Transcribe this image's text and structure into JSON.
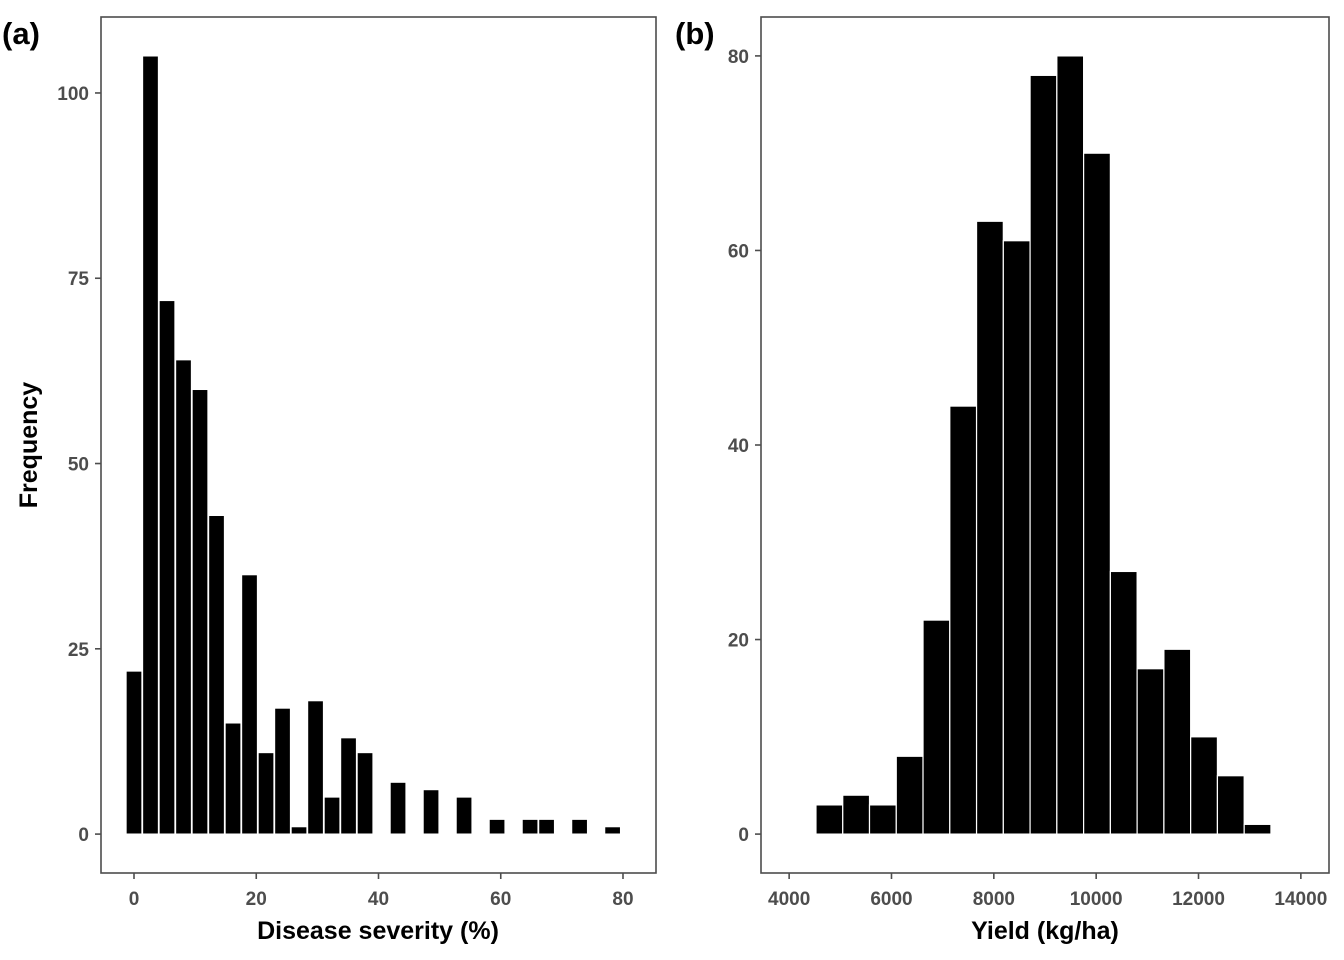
{
  "colors": {
    "bar": "#000000",
    "bar_edge": "#ffffff",
    "frame": "#4d4d4d",
    "tick_text": "#4d4d4d"
  },
  "chart_data": [
    {
      "type": "bar",
      "panel_label": "(a)",
      "xlabel": "Disease severity (%)",
      "ylabel": "Frequency",
      "xlim": [
        -5.4,
        85.4
      ],
      "ylim": [
        -5.25,
        110.25
      ],
      "xticks": [
        0,
        20,
        40,
        60,
        80
      ],
      "yticks": [
        0,
        25,
        50,
        75,
        100
      ],
      "bin_width": 2.6,
      "bin_centers": [
        0,
        2.7,
        5.4,
        8.1,
        10.8,
        13.5,
        16.2,
        18.9,
        21.6,
        24.3,
        27.0,
        29.7,
        32.4,
        35.1,
        37.8,
        43.2,
        48.6,
        54.0,
        59.4,
        64.8,
        67.5,
        72.9,
        78.3
      ],
      "values": [
        22,
        105,
        72,
        64,
        60,
        43,
        15,
        35,
        11,
        17,
        1,
        18,
        5,
        13,
        11,
        7,
        6,
        5,
        2,
        2,
        2,
        2,
        1
      ],
      "grid": false
    },
    {
      "type": "bar",
      "panel_label": "(b)",
      "xlabel": "Yield (kg/ha)",
      "ylabel": "",
      "xlim": [
        3450,
        14550
      ],
      "ylim": [
        -4.0,
        84.0
      ],
      "xticks": [
        4000,
        6000,
        8000,
        10000,
        12000,
        14000
      ],
      "yticks": [
        0,
        20,
        40,
        60,
        80
      ],
      "bin_width": 523,
      "bin_centers": [
        4786,
        5309,
        5832,
        6355,
        6878,
        7401,
        7924,
        8447,
        8970,
        9493,
        10016,
        10539,
        11062,
        11585,
        12108,
        12631,
        13154
      ],
      "values": [
        3,
        4,
        3,
        8,
        22,
        44,
        63,
        61,
        78,
        80,
        70,
        27,
        17,
        19,
        10,
        6,
        1
      ],
      "grid": false
    }
  ]
}
